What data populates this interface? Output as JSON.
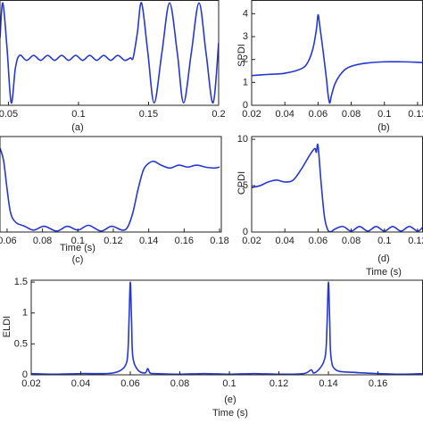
{
  "chart_data": [
    {
      "type": "line",
      "caption": "(a)",
      "x": [
        0.044,
        0.046,
        0.049,
        0.052,
        0.055,
        0.058,
        0.063,
        0.068,
        0.073,
        0.078,
        0.083,
        0.088,
        0.093,
        0.098,
        0.103,
        0.108,
        0.113,
        0.118,
        0.123,
        0.128,
        0.133,
        0.137,
        0.139,
        0.142,
        0.145,
        0.1495,
        0.154,
        0.1595,
        0.165,
        0.1705,
        0.175,
        0.1805,
        0.186,
        0.191,
        0.196,
        0.2
      ],
      "values": [
        0.3,
        1,
        0.1,
        -1,
        -0.3,
        -0.05,
        -0.15,
        -0.05,
        -0.15,
        -0.05,
        -0.15,
        -0.05,
        -0.15,
        -0.05,
        -0.15,
        -0.05,
        -0.15,
        -0.05,
        -0.15,
        -0.05,
        -0.15,
        -0.1,
        -0.1,
        0.4,
        1,
        0,
        -1,
        0,
        1,
        0,
        -1,
        0,
        1,
        0,
        -1,
        0.2
      ],
      "color": "#2638d4",
      "xlim": [
        0.044,
        0.2
      ],
      "ylim": [
        -1.05,
        1.05
      ],
      "xticks": [
        0.05,
        0.1,
        0.15,
        0.2
      ]
    },
    {
      "type": "line",
      "caption": "(b)",
      "ylabel": "SPDI",
      "x": [
        0.02,
        0.03,
        0.04,
        0.05,
        0.054,
        0.057,
        0.059,
        0.06,
        0.061,
        0.063,
        0.065,
        0.066,
        0.067,
        0.068,
        0.07,
        0.073,
        0.077,
        0.082,
        0.09,
        0.1,
        0.11,
        0.12,
        0.123
      ],
      "values": [
        1.3,
        1.35,
        1.4,
        1.6,
        1.9,
        2.5,
        3.3,
        3.95,
        3.5,
        2.4,
        1.2,
        0.5,
        0.1,
        0.4,
        0.9,
        1.3,
        1.6,
        1.75,
        1.85,
        1.9,
        1.9,
        1.88,
        1.87
      ],
      "color": "#2638d4",
      "xlim": [
        0.02,
        0.123
      ],
      "ylim": [
        0,
        4.58
      ],
      "xticks": [
        0.02,
        0.04,
        0.06,
        0.08,
        0.1,
        0.12
      ],
      "yticks": [
        0,
        1,
        2,
        3,
        4
      ]
    },
    {
      "type": "line",
      "caption": "(c)",
      "xlabel": "Time (s)",
      "x": [
        0.056,
        0.058,
        0.06,
        0.062,
        0.065,
        0.07,
        0.075,
        0.081,
        0.088,
        0.094,
        0.1,
        0.106,
        0.113,
        0.119,
        0.125,
        0.128,
        0.131,
        0.134,
        0.137,
        0.14,
        0.143,
        0.147,
        0.152,
        0.157,
        0.162,
        0.167,
        0.172,
        0.177,
        0.18
      ],
      "values": [
        0.88,
        0.75,
        0.45,
        0.2,
        0.1,
        0.06,
        0.02,
        0.06,
        0.01,
        0.06,
        0.02,
        0.07,
        0.01,
        0.06,
        0.02,
        0.05,
        0.2,
        0.45,
        0.65,
        0.72,
        0.74,
        0.7,
        0.67,
        0.7,
        0.68,
        0.7,
        0.68,
        0.67,
        0.68
      ],
      "color": "#2638d4",
      "xlim": [
        0.056,
        0.181
      ],
      "ylim": [
        0,
        1
      ],
      "xticks": [
        0.06,
        0.08,
        0.1,
        0.12,
        0.14,
        0.16,
        0.18
      ]
    },
    {
      "type": "line",
      "caption": "(d)",
      "xlabel": "Time (s)",
      "ylabel": "CPDI",
      "x": [
        0.02,
        0.025,
        0.03,
        0.035,
        0.04,
        0.045,
        0.05,
        0.055,
        0.058,
        0.059,
        0.06,
        0.062,
        0.064,
        0.066,
        0.068,
        0.07,
        0.075,
        0.08,
        0.085,
        0.09,
        0.095,
        0.1,
        0.105,
        0.11,
        0.115,
        0.12,
        0.123
      ],
      "values": [
        4.8,
        5.0,
        5.4,
        5.6,
        5.4,
        5.6,
        6.8,
        8.3,
        9.0,
        8.6,
        9.3,
        5,
        1.5,
        0.2,
        0.05,
        0.3,
        0.6,
        0.1,
        0.6,
        0.1,
        0.6,
        0.1,
        0.6,
        0.1,
        0.6,
        0.1,
        0.5
      ],
      "color": "#2638d4",
      "xlim": [
        0.02,
        0.123
      ],
      "ylim": [
        0,
        10.3
      ],
      "xticks": [
        0.02,
        0.04,
        0.06,
        0.08,
        0.1,
        0.12
      ],
      "yticks": [
        0,
        5,
        10
      ]
    },
    {
      "type": "line",
      "caption": "(e)",
      "xlabel": "Time (s)",
      "ylabel": "ELDI",
      "x": [
        0.02,
        0.03,
        0.04,
        0.05,
        0.055,
        0.058,
        0.059,
        0.0595,
        0.06,
        0.0605,
        0.061,
        0.063,
        0.066,
        0.067,
        0.068,
        0.07,
        0.08,
        0.09,
        0.1,
        0.11,
        0.12,
        0.13,
        0.133,
        0.134,
        0.136,
        0.138,
        0.139,
        0.1395,
        0.14,
        0.1405,
        0.141,
        0.143,
        0.15,
        0.16,
        0.17,
        0.178
      ],
      "values": [
        0.02,
        0.01,
        0.02,
        0.02,
        0.05,
        0.15,
        0.35,
        0.9,
        1.5,
        0.9,
        0.3,
        0.08,
        0.03,
        0.1,
        0.03,
        0.02,
        0.01,
        0.02,
        0.01,
        0.02,
        0.01,
        0.02,
        0.08,
        0.03,
        0.08,
        0.2,
        0.4,
        0.9,
        1.5,
        0.9,
        0.3,
        0.08,
        0.04,
        0.02,
        0.01,
        0.02
      ],
      "color": "#2638d4",
      "xlim": [
        0.02,
        0.178
      ],
      "ylim": [
        0,
        1.53
      ],
      "xticks": [
        0.02,
        0.04,
        0.06,
        0.08,
        0.1,
        0.12,
        0.14,
        0.16
      ],
      "yticks": [
        0,
        0.5,
        1,
        1.5
      ]
    }
  ]
}
